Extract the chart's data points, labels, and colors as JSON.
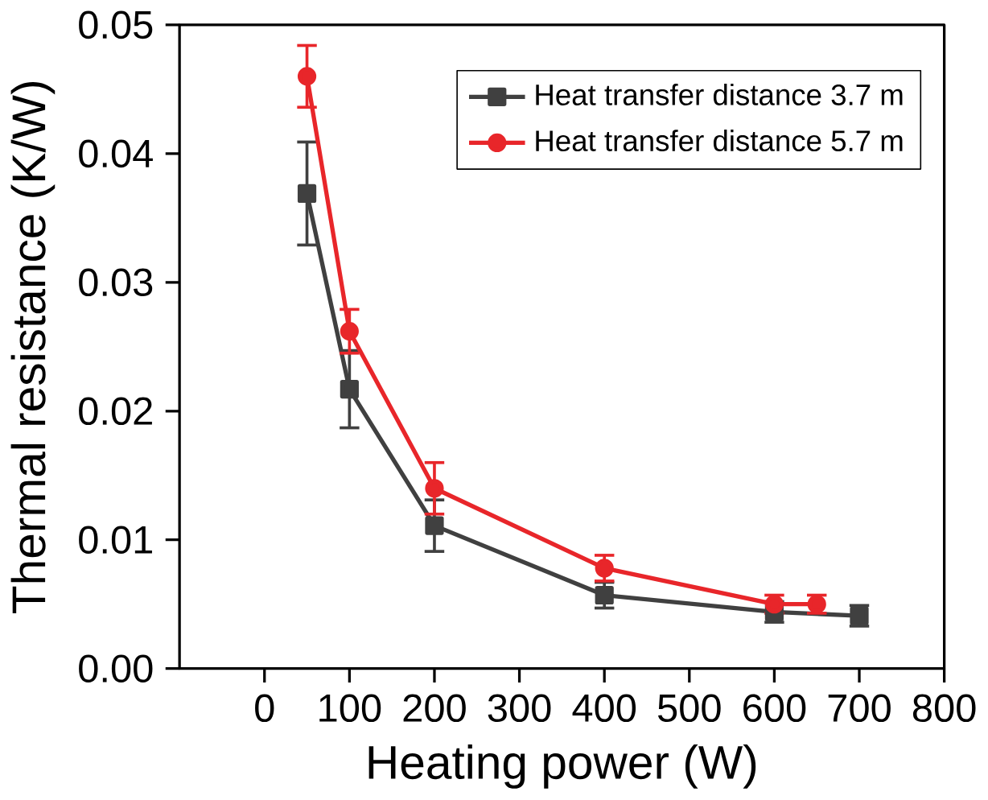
{
  "chart_data": {
    "type": "line",
    "xlabel": "Heating power (W)",
    "ylabel": "Thermal resistance (K/W)",
    "xlim": [
      -100,
      800
    ],
    "xticks": [
      0,
      100,
      200,
      300,
      400,
      500,
      600,
      700,
      800
    ],
    "ylim": [
      0,
      0.05
    ],
    "yticks": [
      {
        "value": 0,
        "label": "0.00"
      },
      {
        "value": 0.01,
        "label": "0.01"
      },
      {
        "value": 0.02,
        "label": "0.02"
      },
      {
        "value": 0.03,
        "label": "0.03"
      },
      {
        "value": 0.04,
        "label": "0.04"
      },
      {
        "value": 0.05,
        "label": "0.05"
      }
    ],
    "legend": "top right",
    "grid": false,
    "line_style": "solid",
    "series": [
      {
        "name": "Heat transfer distance 3.7 m",
        "color": "#404040",
        "marker": "square",
        "x": [
          50,
          100,
          200,
          400,
          600,
          700
        ],
        "values": [
          0.0369,
          0.0217,
          0.0111,
          0.0057,
          0.0044,
          0.0041
        ],
        "errors": [
          0.004,
          0.003,
          0.002,
          0.001,
          0.0008,
          0.0008
        ]
      },
      {
        "name": "Heat transfer distance 5.7 m",
        "color": "#e8262a",
        "marker": "circle",
        "x": [
          50,
          100,
          200,
          400,
          600,
          650
        ],
        "values": [
          0.046,
          0.0262,
          0.014,
          0.0078,
          0.005,
          0.005
        ],
        "errors": [
          0.0024,
          0.0017,
          0.002,
          0.001,
          0.0007,
          0.0007
        ]
      }
    ]
  }
}
